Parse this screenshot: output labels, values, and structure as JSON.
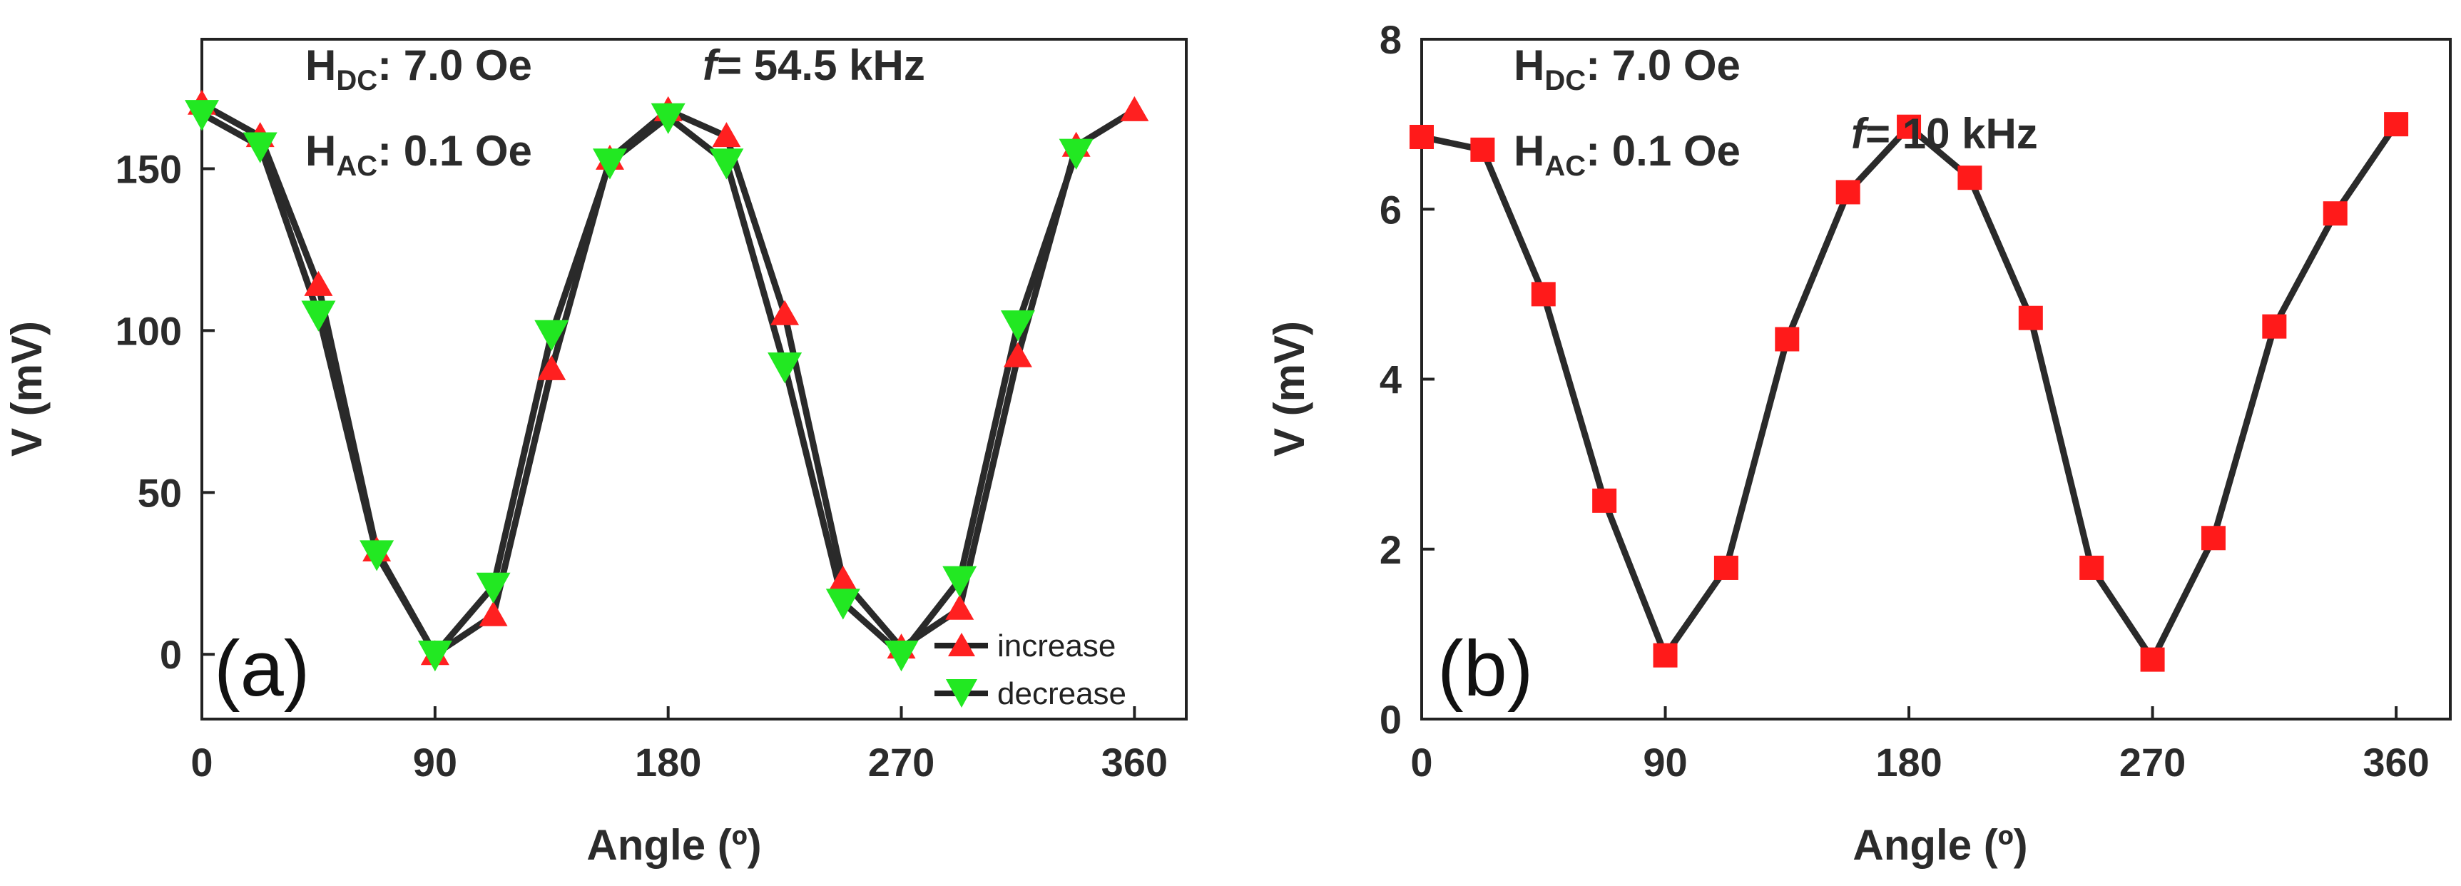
{
  "chart_data": [
    {
      "type": "line",
      "panel_label": "(a)",
      "xlabel": "Angle (º)",
      "ylabel": "V (mV)",
      "xlim": [
        0,
        380
      ],
      "ylim": [
        -20,
        190
      ],
      "xticks": [
        0,
        90,
        180,
        270,
        360
      ],
      "yticks": [
        0,
        50,
        100,
        150
      ],
      "annotations": {
        "hdc_prefix": "H",
        "hdc_sub": "DC",
        "hdc_value": ": 7.0 Oe",
        "hac_prefix": "H",
        "hac_sub": "AC",
        "hac_value": ": 0.1 Oe",
        "freq_symbol": "f",
        "freq_value": "= 54.5 kHz"
      },
      "legend_position": "bottom-right",
      "series": [
        {
          "name": "increase",
          "marker": "triangle-up",
          "color": "#ff2020",
          "x": [
            0,
            22.5,
            45,
            67.5,
            90,
            112.5,
            135,
            157.5,
            180,
            202.5,
            225,
            247.5,
            270,
            292.5,
            315,
            337.5,
            360
          ],
          "values": [
            170,
            160,
            114,
            32,
            0,
            12,
            88,
            153,
            168,
            160,
            105,
            23,
            2,
            14,
            92,
            157,
            168
          ]
        },
        {
          "name": "decrease",
          "marker": "triangle-down",
          "color": "#22e822",
          "x": [
            0,
            22.5,
            45,
            67.5,
            90,
            112.5,
            135,
            157.5,
            180,
            202.5,
            225,
            247.5,
            270,
            292.5,
            315,
            337.5
          ],
          "values": [
            167,
            157,
            105,
            31,
            0,
            21,
            99,
            152,
            166,
            152,
            89,
            16,
            0,
            23,
            102,
            155
          ]
        }
      ]
    },
    {
      "type": "line",
      "panel_label": "(b)",
      "xlabel": "Angle (º)",
      "ylabel": "V (mV)",
      "xlim": [
        0,
        380
      ],
      "ylim": [
        0,
        8
      ],
      "xticks": [
        0,
        90,
        180,
        270,
        360
      ],
      "yticks": [
        0,
        2,
        4,
        6,
        8
      ],
      "annotations": {
        "hdc_prefix": "H",
        "hdc_sub": "DC",
        "hdc_value": ": 7.0 Oe",
        "hac_prefix": "H",
        "hac_sub": "AC",
        "hac_value": ": 0.1 Oe",
        "freq_symbol": "f",
        "freq_value": "= 10 kHz"
      },
      "series": [
        {
          "name": "V",
          "marker": "square",
          "color": "#ff1a1a",
          "x": [
            0,
            22.5,
            45,
            67.5,
            90,
            112.5,
            135,
            157.5,
            180,
            202.5,
            225,
            247.5,
            270,
            292.5,
            315,
            337.5,
            360
          ],
          "values": [
            6.85,
            6.7,
            5.0,
            2.57,
            0.75,
            1.78,
            4.47,
            6.2,
            6.97,
            6.37,
            4.72,
            1.78,
            0.7,
            2.13,
            4.62,
            5.95,
            7.0
          ]
        }
      ]
    }
  ]
}
